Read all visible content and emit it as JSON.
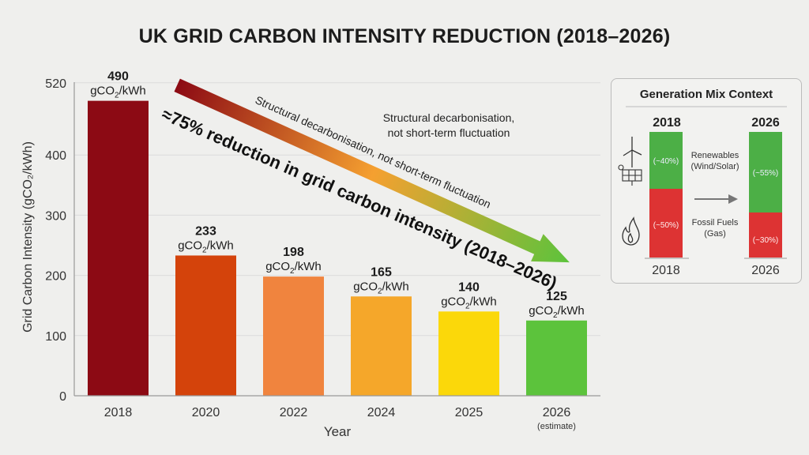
{
  "chart_data": {
    "type": "bar",
    "title": "UK GRID CARBON INTENSITY REDUCTION (2018–2026)",
    "xlabel": "Year",
    "ylabel": "Grid Carbon Intensity (gCO₂/kWh)",
    "ylim": [
      0,
      520
    ],
    "yticks": [
      0,
      100,
      200,
      300,
      400,
      520
    ],
    "grid": true,
    "categories": [
      "2018",
      "2020",
      "2022",
      "2024",
      "2025",
      "2026"
    ],
    "category_notes": [
      "",
      "",
      "",
      "",
      "",
      "(estimate)"
    ],
    "values": [
      490,
      233,
      198,
      165,
      140,
      125
    ],
    "unit": "gCO₂/kWh",
    "bar_colors": [
      "#8c0a14",
      "#d4430b",
      "#f0843e",
      "#f5a72a",
      "#fbd80a",
      "#5cc33c"
    ],
    "annotations": {
      "reduction": "≈75% reduction in grid carbon intensity (2018–2026)",
      "arrow_caption": "Structural decarbonisation, not short-term fluctuation",
      "note_line1": "Structural decarbonisation,",
      "note_line2": "not short-term fluctuation"
    }
  },
  "generation_mix": {
    "title": "Generation Mix Context",
    "years": [
      "2018",
      "2026"
    ],
    "renewables_label_1": "Renewables",
    "renewables_label_2": "(Wind/Solar)",
    "fossil_label_1": "Fossil Fuels",
    "fossil_label_2": "(Gas)",
    "renewables_share": [
      "(~40%)",
      "(~55%)"
    ],
    "fossil_share": [
      "(~50%)",
      "(~30%)"
    ],
    "renewables_color": "#4caf46",
    "fossil_color": "#dd3333"
  }
}
